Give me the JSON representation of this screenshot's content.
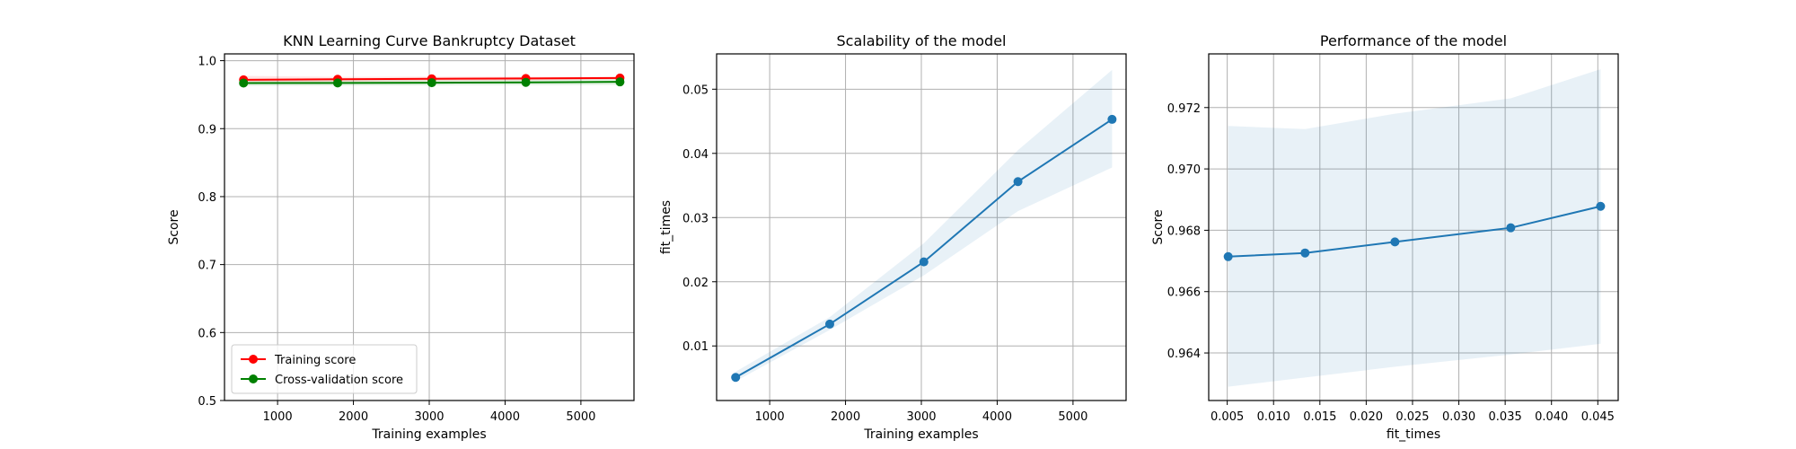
{
  "chart_data": [
    {
      "type": "line",
      "title": "KNN Learning Curve Bankruptcy Dataset",
      "xlabel": "Training examples",
      "ylabel": "Score",
      "xlim": [
        300,
        5700
      ],
      "ylim": [
        0.5,
        1.01
      ],
      "xticks": [
        1000,
        2000,
        3000,
        4000,
        5000
      ],
      "yticks": [
        0.5,
        0.6,
        0.7,
        0.8,
        0.9,
        1.0
      ],
      "grid": true,
      "legend_position": "lower-left",
      "x": [
        551,
        1792,
        3033,
        4274,
        5515
      ],
      "series": [
        {
          "name": "Training score",
          "color": "#ff0000",
          "values": [
            0.9718,
            0.9726,
            0.9733,
            0.9738,
            0.9745
          ],
          "band_lower": [
            0.966,
            0.969,
            0.97,
            0.971,
            0.9725
          ],
          "band_upper": [
            0.9776,
            0.9762,
            0.9766,
            0.9766,
            0.9765
          ]
        },
        {
          "name": "Cross-validation score",
          "color": "#008000",
          "values": [
            0.9671,
            0.9672,
            0.9676,
            0.9681,
            0.9688
          ],
          "band_lower": [
            0.9629,
            0.9632,
            0.9636,
            0.964,
            0.9643
          ],
          "band_upper": [
            0.9714,
            0.9713,
            0.9718,
            0.9723,
            0.9733
          ]
        }
      ]
    },
    {
      "type": "line",
      "title": "Scalability of the model",
      "xlabel": "Training examples",
      "ylabel": "fit_times",
      "xlim": [
        300,
        5700
      ],
      "ylim": [
        0.0015,
        0.0555
      ],
      "xticks": [
        1000,
        2000,
        3000,
        4000,
        5000
      ],
      "yticks": [
        0.01,
        0.02,
        0.03,
        0.04,
        0.05
      ],
      "grid": true,
      "x": [
        551,
        1792,
        3033,
        4274,
        5515
      ],
      "series": [
        {
          "color": "#1f77b4",
          "values": [
            0.0051,
            0.0134,
            0.0231,
            0.0356,
            0.0453
          ],
          "band_lower": [
            0.0045,
            0.0125,
            0.021,
            0.031,
            0.0378
          ],
          "band_upper": [
            0.006,
            0.0145,
            0.026,
            0.0405,
            0.053
          ]
        }
      ]
    },
    {
      "type": "line",
      "title": "Performance of the model",
      "xlabel": "fit_times",
      "ylabel": "Score",
      "xlim": [
        0.003,
        0.0472
      ],
      "ylim": [
        0.96245,
        0.97375
      ],
      "xticks": [
        0.005,
        0.01,
        0.015,
        0.02,
        0.025,
        0.03,
        0.035,
        0.04,
        0.045
      ],
      "xtick_labels": [
        "0.005",
        "0.010",
        "0.015",
        "0.020",
        "0.025",
        "0.030",
        "0.035",
        "0.040",
        "0.045"
      ],
      "yticks": [
        0.964,
        0.966,
        0.968,
        0.97,
        0.972
      ],
      "grid": true,
      "x": [
        0.0051,
        0.0134,
        0.0231,
        0.0356,
        0.0453
      ],
      "series": [
        {
          "color": "#1f77b4",
          "values": [
            0.96714,
            0.96726,
            0.96762,
            0.96808,
            0.96878
          ],
          "band_lower": [
            0.9629,
            0.9632,
            0.96355,
            0.96395,
            0.9643
          ],
          "band_upper": [
            0.9714,
            0.9713,
            0.9718,
            0.9723,
            0.97325
          ]
        }
      ]
    }
  ]
}
